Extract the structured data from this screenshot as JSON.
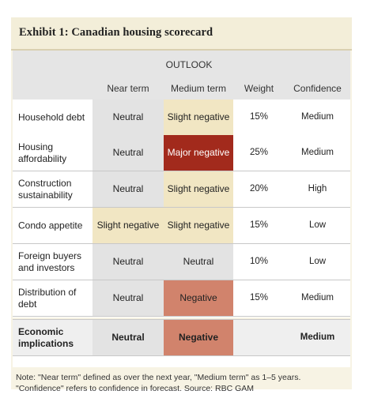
{
  "exhibit": {
    "title": "Exhibit 1: Canadian housing scorecard"
  },
  "header": {
    "outlook": "OUTLOOK",
    "near_term": "Near term",
    "medium_term": "Medium term",
    "weight": "Weight",
    "confidence": "Confidence"
  },
  "rows": [
    {
      "label": "Household debt",
      "near": "Neutral",
      "medium": "Slight negative",
      "weight": "15%",
      "confidence": "Medium"
    },
    {
      "label": "Housing affordability",
      "near": "Neutral",
      "medium": "Major negative",
      "weight": "25%",
      "confidence": "Medium"
    },
    {
      "label": "Construction sustainability",
      "near": "Neutral",
      "medium": "Slight negative",
      "weight": "20%",
      "confidence": "High"
    },
    {
      "label": "Condo appetite",
      "near": "Slight negative",
      "medium": "Slight negative",
      "weight": "15%",
      "confidence": "Low"
    },
    {
      "label": "Foreign buyers and investors",
      "near": "Neutral",
      "medium": "Neutral",
      "weight": "10%",
      "confidence": "Low"
    },
    {
      "label": "Distribution of debt",
      "near": "Neutral",
      "medium": "Negative",
      "weight": "15%",
      "confidence": "Medium"
    }
  ],
  "summary": {
    "label": "Economic implications",
    "near": "Neutral",
    "medium": "Negative",
    "weight": "",
    "confidence": "Medium"
  },
  "colors": {
    "neutral": "#e3e3e3",
    "slight_negative": "#f1e6c3",
    "negative": "#d1836c",
    "major_negative": "#a22a1c",
    "frame": "#f7f3e4"
  },
  "note": "Note: \"Near term\" defined as over the next year, \"Medium term\" as 1–5 years. \"Confidence\" refers to confidence in forecast. Source: RBC GAM"
}
